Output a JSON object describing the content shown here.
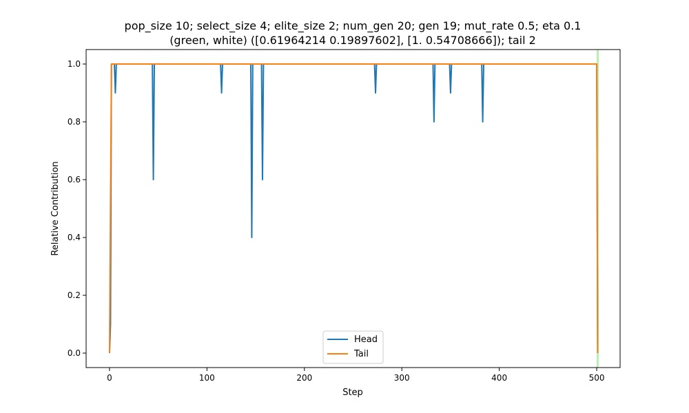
{
  "chart_data": {
    "type": "line",
    "title_lines": [
      "pop_size 10; select_size 4; elite_size 2; num_gen 20; gen 19; mut_rate 0.5; eta 0.1",
      "(green, white) ([0.61964214 0.19897602], [1.         0.54708666]); tail 2"
    ],
    "xlabel": "Step",
    "ylabel": "Relative Contribution",
    "xlim": [
      -24,
      524
    ],
    "ylim": [
      -0.05,
      1.05
    ],
    "x_ticks": [
      0,
      100,
      200,
      300,
      400,
      500
    ],
    "y_ticks": [
      0.0,
      0.2,
      0.4,
      0.6,
      0.8,
      1.0
    ],
    "x_tick_labels": [
      "0",
      "100",
      "200",
      "300",
      "400",
      "500"
    ],
    "y_tick_labels": [
      "0.0",
      "0.2",
      "0.4",
      "0.6",
      "0.8",
      "1.0"
    ],
    "highlight_x": 501,
    "highlight_color": "#b8f0b0",
    "legend_position": "bottom-center",
    "series": [
      {
        "name": "Head",
        "color": "#1f77b4",
        "points": [
          [
            0,
            0.0
          ],
          [
            1,
            0.1
          ],
          [
            2,
            1.0
          ],
          [
            5,
            1.0
          ],
          [
            6,
            0.9
          ],
          [
            7,
            1.0
          ],
          [
            44,
            1.0
          ],
          [
            45,
            0.6
          ],
          [
            46,
            1.0
          ],
          [
            114,
            1.0
          ],
          [
            115,
            0.9
          ],
          [
            116,
            1.0
          ],
          [
            145,
            1.0
          ],
          [
            146,
            0.4
          ],
          [
            147,
            1.0
          ],
          [
            156,
            1.0
          ],
          [
            157,
            0.6
          ],
          [
            158,
            1.0
          ],
          [
            272,
            1.0
          ],
          [
            273,
            0.9
          ],
          [
            274,
            1.0
          ],
          [
            332,
            1.0
          ],
          [
            333,
            0.8
          ],
          [
            334,
            1.0
          ],
          [
            349,
            1.0
          ],
          [
            350,
            0.9
          ],
          [
            351,
            1.0
          ],
          [
            382,
            1.0
          ],
          [
            383,
            0.8
          ],
          [
            384,
            1.0
          ],
          [
            500,
            1.0
          ],
          [
            501,
            0.0
          ]
        ]
      },
      {
        "name": "Tail",
        "color": "#ff7f0e",
        "points": [
          [
            0,
            0.0
          ],
          [
            2,
            1.0
          ],
          [
            500,
            1.0
          ],
          [
            501,
            0.0
          ]
        ]
      }
    ]
  }
}
